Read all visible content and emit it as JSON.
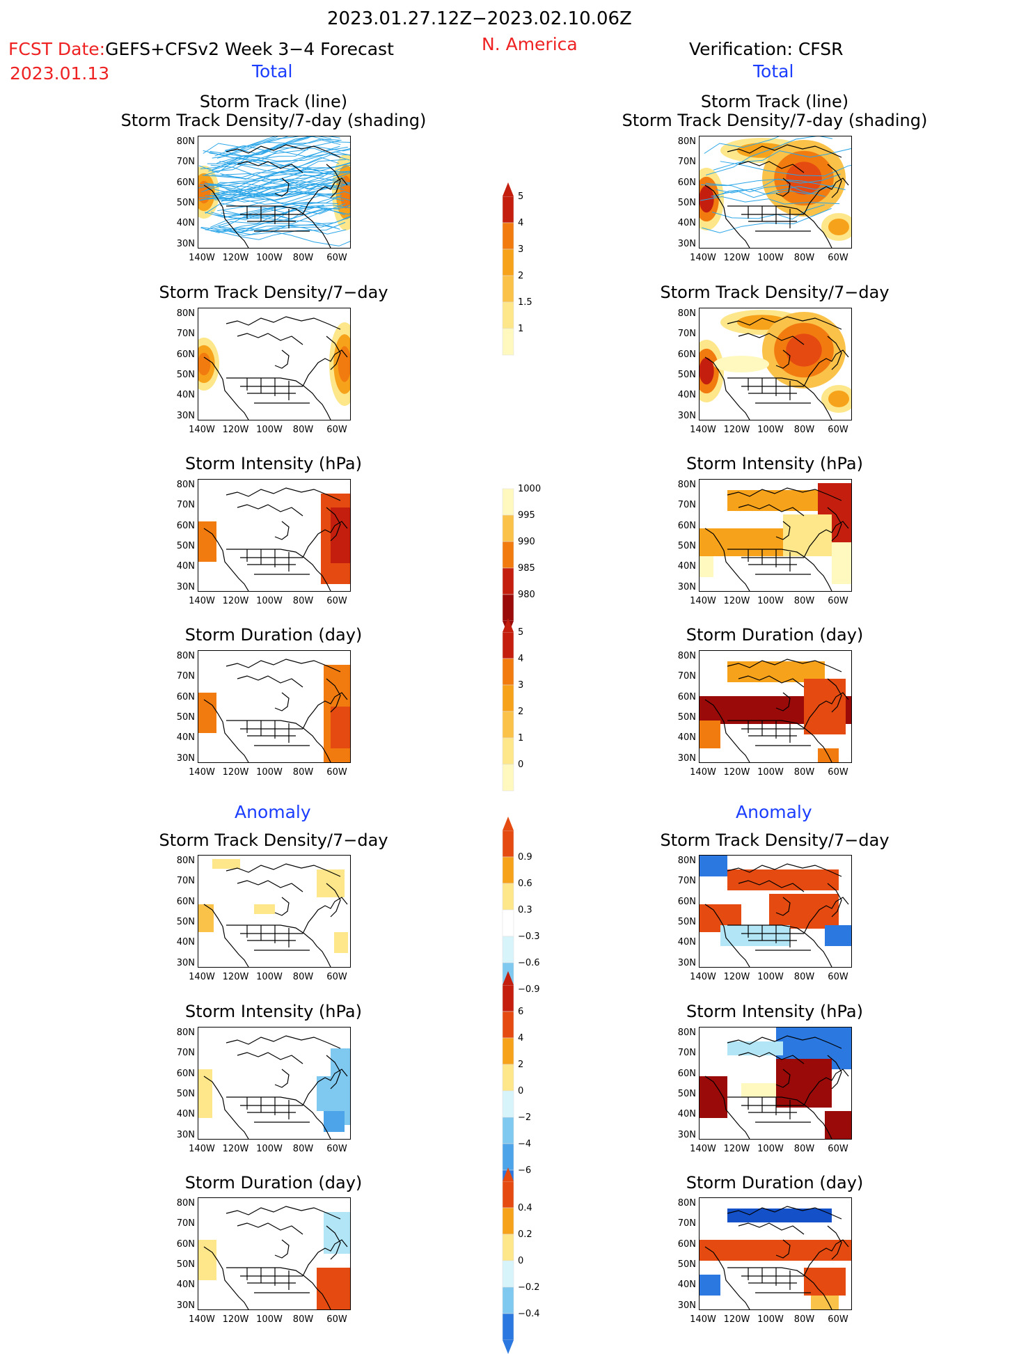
{
  "header": {
    "title": "2023.01.27.12Z−2023.02.10.06Z",
    "fcst_prefix": "FCST Date:",
    "fcst_model": "GEFS+CFSv2 Week 3−4 Forecast",
    "fcst_date": "2023.01.13",
    "region": "N. America",
    "verification": "Verification: CFSR",
    "total_left": "Total",
    "total_right": "Total",
    "anomaly_left": "Anomaly",
    "anomaly_right": "Anomaly"
  },
  "panel_titles": {
    "track_line": "Storm Track (line)",
    "track_shading": "Storm Track Density/7-day (shading)",
    "density": "Storm Track Density/7−day",
    "intensity": "Storm Intensity (hPa)",
    "duration": "Storm Duration (day)"
  },
  "axes": {
    "lat_ticks": [
      "80N",
      "70N",
      "60N",
      "50N",
      "40N",
      "30N"
    ],
    "lon_ticks": [
      "140W",
      "120W",
      "100W",
      "80W",
      "60W"
    ]
  },
  "colorbars": {
    "density_total": [
      "5",
      "4",
      "3",
      "2",
      "1.5",
      "1"
    ],
    "intensity_total": [
      "1000",
      "995",
      "990",
      "985",
      "980"
    ],
    "duration_total": [
      "5",
      "4",
      "3",
      "2",
      "1",
      "0"
    ],
    "density_anom": [
      "0.9",
      "0.6",
      "0.3",
      "−0.3",
      "−0.6",
      "−0.9"
    ],
    "intensity_anom": [
      "6",
      "4",
      "2",
      "0",
      "−2",
      "−4",
      "−6"
    ],
    "duration_anom": [
      "0.4",
      "0.2",
      "0",
      "−0.2",
      "−0.4"
    ]
  },
  "colors": {
    "warm": [
      "#fff9c0",
      "#fde78a",
      "#fbc24a",
      "#f7a21b",
      "#f27b10",
      "#e54a10",
      "#c41f0e",
      "#9a0a08"
    ],
    "cool": [
      "#d8f4fb",
      "#b2e6f6",
      "#7fc8f0",
      "#4ea4e8",
      "#2a78e0",
      "#1450c8"
    ],
    "track_line": "#2aa5e8",
    "title_red": "#ee2222",
    "title_blue": "#1a3dff"
  },
  "chart_data": [
    {
      "type": "heatmap",
      "title": "Storm Track (line) / Storm Track Density/7-day (shading)",
      "column": "GEFS+CFSv2 forecast",
      "kind": "total"
    },
    {
      "type": "heatmap",
      "title": "Storm Track Density/7−day",
      "column": "GEFS+CFSv2 forecast",
      "kind": "total"
    },
    {
      "type": "heatmap",
      "title": "Storm Intensity (hPa)",
      "column": "GEFS+CFSv2 forecast",
      "kind": "total"
    },
    {
      "type": "heatmap",
      "title": "Storm Duration (day)",
      "column": "GEFS+CFSv2 forecast",
      "kind": "total"
    },
    {
      "type": "heatmap",
      "title": "Storm Track Density/7−day",
      "column": "GEFS+CFSv2 forecast",
      "kind": "anomaly"
    },
    {
      "type": "heatmap",
      "title": "Storm Intensity (hPa)",
      "column": "GEFS+CFSv2 forecast",
      "kind": "anomaly"
    },
    {
      "type": "heatmap",
      "title": "Storm Duration (day)",
      "column": "GEFS+CFSv2 forecast",
      "kind": "anomaly"
    },
    {
      "type": "heatmap",
      "title": "Storm Track (line) / Storm Track Density/7-day (shading)",
      "column": "Verification: CFSR",
      "kind": "total"
    },
    {
      "type": "heatmap",
      "title": "Storm Track Density/7−day",
      "column": "Verification: CFSR",
      "kind": "total"
    },
    {
      "type": "heatmap",
      "title": "Storm Intensity (hPa)",
      "column": "Verification: CFSR",
      "kind": "total"
    },
    {
      "type": "heatmap",
      "title": "Storm Duration (day)",
      "column": "Verification: CFSR",
      "kind": "total"
    },
    {
      "type": "heatmap",
      "title": "Storm Track Density/7−day",
      "column": "Verification: CFSR",
      "kind": "anomaly"
    },
    {
      "type": "heatmap",
      "title": "Storm Intensity (hPa)",
      "column": "Verification: CFSR",
      "kind": "anomaly"
    },
    {
      "type": "heatmap",
      "title": "Storm Duration (day)",
      "column": "Verification: CFSR",
      "kind": "anomaly"
    }
  ]
}
